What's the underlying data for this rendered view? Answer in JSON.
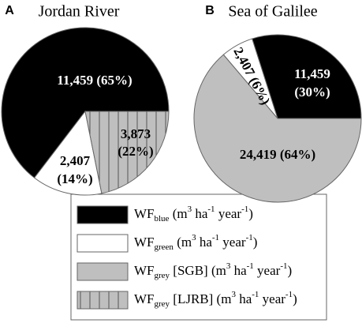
{
  "chart_data": [
    {
      "type": "pie",
      "panel": "A",
      "title": "Jordan River",
      "values": [
        11459,
        2407,
        3873
      ],
      "value_labels": [
        [
          "11,459 (65%)"
        ],
        [
          "2,407",
          "(14%)"
        ],
        [
          "3,873",
          "(22%)"
        ]
      ],
      "colors": [
        "#000000",
        "#ffffff",
        "#bfbfbf"
      ],
      "hatch": [
        "none",
        "none",
        "vertical"
      ]
    },
    {
      "type": "pie",
      "panel": "B",
      "title": "Sea of Galilee",
      "values": [
        11459,
        2407,
        24419
      ],
      "value_labels": [
        [
          "11,459",
          "(30%)"
        ],
        [
          "2,407 (6%)"
        ],
        [
          "24,419 (64%)"
        ]
      ],
      "colors": [
        "#000000",
        "#ffffff",
        "#bfbfbf"
      ],
      "hatch": [
        "none",
        "none",
        "none"
      ]
    }
  ],
  "legend": [
    {
      "color": "#000000",
      "hatch": "none",
      "parts": [
        "WF",
        "blue",
        " (m",
        "3",
        " ha",
        "-1",
        " year",
        "-1",
        ")"
      ]
    },
    {
      "color": "#ffffff",
      "hatch": "none",
      "parts": [
        "WF",
        "green",
        " (m",
        "3",
        " ha",
        "-1",
        " year",
        "-1",
        ")"
      ]
    },
    {
      "color": "#bfbfbf",
      "hatch": "none",
      "parts": [
        "WF",
        "grey",
        " [SGB] (m",
        "3",
        " ha",
        "-1",
        " year",
        "-1",
        ")"
      ]
    },
    {
      "color": "#bfbfbf",
      "hatch": "vertical",
      "parts": [
        "WF",
        "grey",
        " [LJRB] (m",
        "3",
        " ha",
        "-1",
        " year",
        "-1",
        ")"
      ]
    }
  ]
}
